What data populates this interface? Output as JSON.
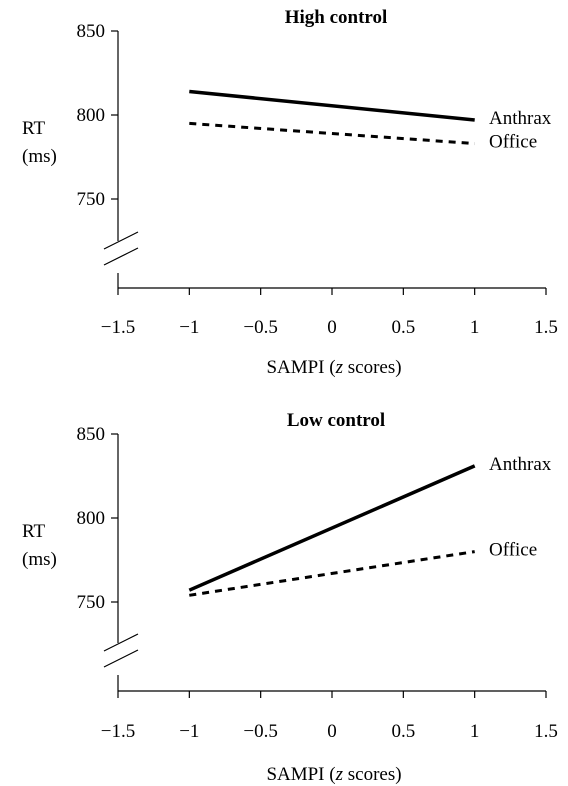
{
  "chart_data": [
    {
      "type": "line",
      "title": "High control",
      "ylabel_line1": "RT",
      "ylabel_line2": "(ms)",
      "xlabel_prefix": "SAMPI (",
      "xlabel_italic": "z",
      "xlabel_suffix": " scores)",
      "xlim": [
        -1.5,
        1.5
      ],
      "ylim": [
        700,
        850
      ],
      "x_ticks": [
        -1.5,
        -1,
        -0.5,
        0,
        0.5,
        1,
        1.5
      ],
      "x_tick_labels": [
        "−1.5",
        "−1",
        "−0.5",
        "0",
        "0.5",
        "1",
        "1.5"
      ],
      "y_ticks": [
        750,
        800,
        850
      ],
      "y_tick_labels": [
        "750",
        "800",
        "850"
      ],
      "axis_break": true,
      "grid": false,
      "series": [
        {
          "name": "Anthrax",
          "style": "solid",
          "x": [
            -1,
            1
          ],
          "y": [
            814,
            797
          ]
        },
        {
          "name": "Office",
          "style": "dashed",
          "x": [
            -1,
            1
          ],
          "y": [
            795,
            783
          ]
        }
      ]
    },
    {
      "type": "line",
      "title": "Low control",
      "ylabel_line1": "RT",
      "ylabel_line2": "(ms)",
      "xlabel_prefix": "SAMPI (",
      "xlabel_italic": "z",
      "xlabel_suffix": " scores)",
      "xlim": [
        -1.5,
        1.5
      ],
      "ylim": [
        700,
        850
      ],
      "x_ticks": [
        -1.5,
        -1,
        -0.5,
        0,
        0.5,
        1,
        1.5
      ],
      "x_tick_labels": [
        "−1.5",
        "−1",
        "−0.5",
        "0",
        "0.5",
        "1",
        "1.5"
      ],
      "y_ticks": [
        750,
        800,
        850
      ],
      "y_tick_labels": [
        "750",
        "800",
        "850"
      ],
      "axis_break": true,
      "grid": false,
      "series": [
        {
          "name": "Anthrax",
          "style": "solid",
          "x": [
            -1,
            1
          ],
          "y": [
            757,
            831
          ]
        },
        {
          "name": "Office",
          "style": "dashed",
          "x": [
            -1,
            1
          ],
          "y": [
            754,
            780
          ]
        }
      ]
    }
  ]
}
